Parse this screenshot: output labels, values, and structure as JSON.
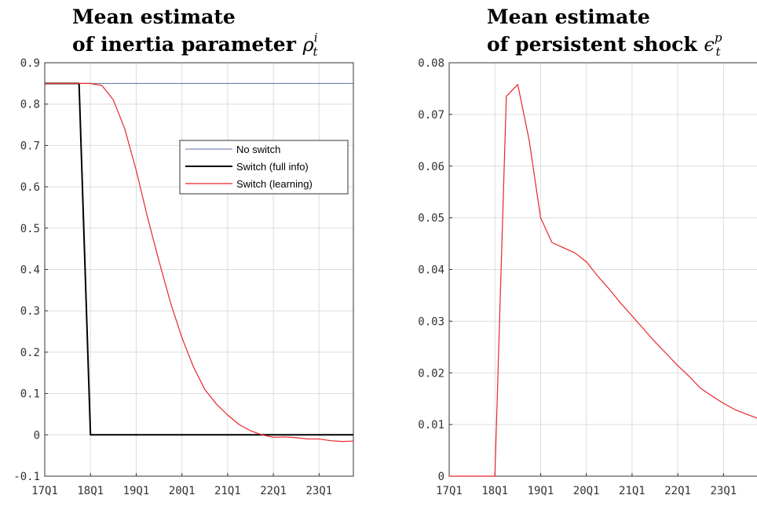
{
  "chart_data": [
    {
      "type": "line",
      "title": {
        "line1": "Mean estimate",
        "line2_prefix": "of inertia parameter ",
        "symbol": "ρ",
        "sub": "t",
        "sup": "i"
      },
      "xlim": [
        0,
        27
      ],
      "ylim": [
        -0.1,
        0.9
      ],
      "xticks": [
        {
          "pos": 0,
          "label": "17Q1"
        },
        {
          "pos": 4,
          "label": "18Q1"
        },
        {
          "pos": 8,
          "label": "19Q1"
        },
        {
          "pos": 12,
          "label": "20Q1"
        },
        {
          "pos": 16,
          "label": "21Q1"
        },
        {
          "pos": 20,
          "label": "22Q1"
        },
        {
          "pos": 24,
          "label": "23Q1"
        }
      ],
      "yticks": [
        {
          "value": -0.1,
          "label": "-0.1"
        },
        {
          "value": 0,
          "label": "0"
        },
        {
          "value": 0.1,
          "label": "0.1"
        },
        {
          "value": 0.2,
          "label": "0.2"
        },
        {
          "value": 0.3,
          "label": "0.3"
        },
        {
          "value": 0.4,
          "label": "0.4"
        },
        {
          "value": 0.5,
          "label": "0.5"
        },
        {
          "value": 0.6,
          "label": "0.6"
        },
        {
          "value": 0.7,
          "label": "0.7"
        },
        {
          "value": 0.8,
          "label": "0.8"
        },
        {
          "value": 0.9,
          "label": "0.9"
        }
      ],
      "grid": true,
      "legend_position": "upper-right",
      "series": [
        {
          "name": "No switch",
          "color": "#5b6fa8",
          "x": [
            0,
            27
          ],
          "y": [
            0.85,
            0.85
          ]
        },
        {
          "name": "Switch (full info)",
          "color": "#000000",
          "x": [
            0,
            1,
            2,
            3,
            4,
            5,
            6,
            7,
            8,
            9,
            10,
            11,
            12,
            13,
            14,
            15,
            16,
            17,
            18,
            19,
            20,
            21,
            22,
            23,
            24,
            25,
            26,
            27
          ],
          "y": [
            0.85,
            0.85,
            0.85,
            0.85,
            0,
            0,
            0,
            0,
            0,
            0,
            0,
            0,
            0,
            0,
            0,
            0,
            0,
            0,
            0,
            0,
            0,
            0,
            0,
            0,
            0,
            0,
            0,
            0
          ]
        },
        {
          "name": "Switch (learning)",
          "color": "#e8262a",
          "x": [
            0,
            1,
            2,
            3,
            4,
            5,
            6,
            7,
            8,
            9,
            10,
            11,
            12,
            13,
            14,
            15,
            16,
            17,
            18,
            19,
            20,
            21,
            22,
            23,
            24,
            25,
            26,
            27
          ],
          "y": [
            0.85,
            0.85,
            0.85,
            0.85,
            0.85,
            0.845,
            0.81,
            0.74,
            0.64,
            0.525,
            0.42,
            0.32,
            0.235,
            0.165,
            0.11,
            0.075,
            0.048,
            0.025,
            0.01,
            0.0,
            -0.006,
            -0.005,
            -0.007,
            -0.01,
            -0.01,
            -0.014,
            -0.016,
            -0.015
          ]
        }
      ]
    },
    {
      "type": "line",
      "title": {
        "line1": "Mean estimate",
        "line2_prefix": "of persistent shock ",
        "symbol": "ϵ",
        "sub": "t",
        "sup": "p"
      },
      "xlim": [
        0,
        27
      ],
      "ylim": [
        0,
        0.08
      ],
      "xticks": [
        {
          "pos": 0,
          "label": "17Q1"
        },
        {
          "pos": 4,
          "label": "18Q1"
        },
        {
          "pos": 8,
          "label": "19Q1"
        },
        {
          "pos": 12,
          "label": "20Q1"
        },
        {
          "pos": 16,
          "label": "21Q1"
        },
        {
          "pos": 20,
          "label": "22Q1"
        },
        {
          "pos": 24,
          "label": "23Q1"
        }
      ],
      "yticks": [
        {
          "value": 0,
          "label": "0"
        },
        {
          "value": 0.01,
          "label": "0.01"
        },
        {
          "value": 0.02,
          "label": "0.02"
        },
        {
          "value": 0.03,
          "label": "0.03"
        },
        {
          "value": 0.04,
          "label": "0.04"
        },
        {
          "value": 0.05,
          "label": "0.05"
        },
        {
          "value": 0.06,
          "label": "0.06"
        },
        {
          "value": 0.07,
          "label": "0.07"
        },
        {
          "value": 0.08,
          "label": "0.08"
        }
      ],
      "grid": true,
      "series": [
        {
          "color": "#e8262a",
          "x": [
            0,
            1,
            2,
            3,
            4,
            5,
            6,
            7,
            8,
            9,
            10,
            11,
            12,
            13,
            14,
            15,
            16,
            17,
            18,
            19,
            20,
            21,
            22,
            23,
            24,
            25,
            26,
            27
          ],
          "y": [
            0,
            0,
            0,
            0,
            0,
            0.0735,
            0.0758,
            0.065,
            0.05,
            0.0452,
            0.0442,
            0.0432,
            0.0415,
            0.0387,
            0.0362,
            0.0335,
            0.031,
            0.0285,
            0.026,
            0.0237,
            0.0214,
            0.0193,
            0.017,
            0.0155,
            0.0141,
            0.0129,
            0.012,
            0.0112
          ]
        }
      ]
    }
  ]
}
